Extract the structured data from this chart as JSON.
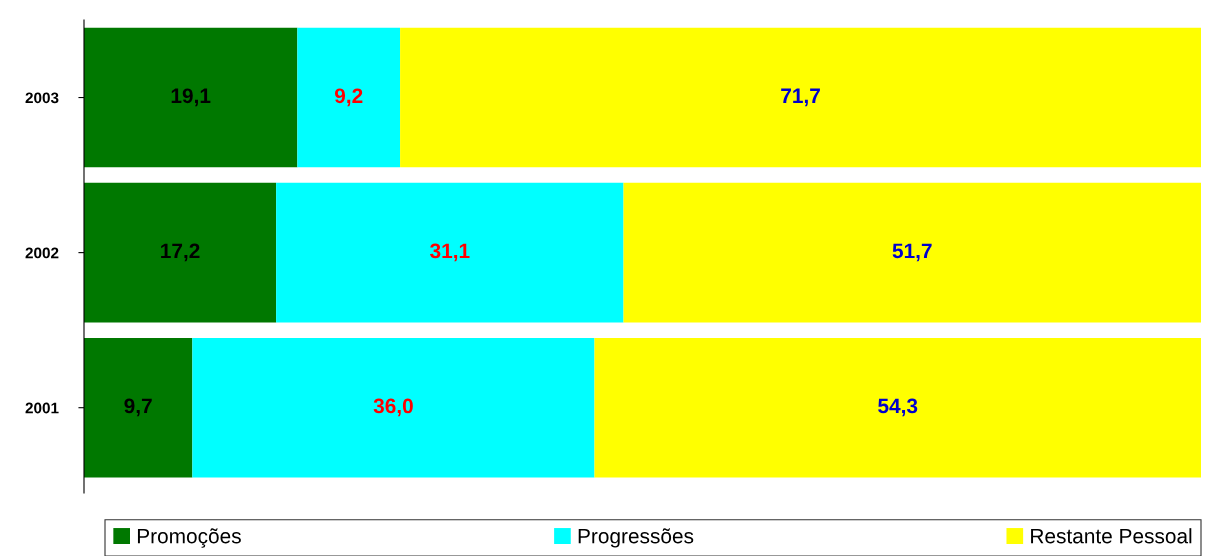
{
  "chart_data": {
    "type": "bar",
    "orientation": "horizontal",
    "stacked": true,
    "categories": [
      "2003",
      "2002",
      "2001"
    ],
    "xlim": [
      0,
      100
    ],
    "data_labels": true,
    "legend": "bottom",
    "grid": false,
    "series": [
      {
        "name": "Promoções",
        "color": "#007800",
        "values": [
          19.1,
          17.2,
          9.7
        ],
        "value_labels": [
          "19,1",
          "17,2",
          "9,7"
        ]
      },
      {
        "name": "Progressões",
        "color": "#00ffff",
        "values": [
          9.2,
          31.1,
          36.0
        ],
        "value_labels": [
          "9,2",
          "31,1",
          "36,0"
        ]
      },
      {
        "name": "Restante Pessoal",
        "color": "#ffff00",
        "values": [
          71.7,
          51.7,
          54.3
        ],
        "value_labels": [
          "71,7",
          "51,7",
          "54,3"
        ]
      }
    ]
  }
}
